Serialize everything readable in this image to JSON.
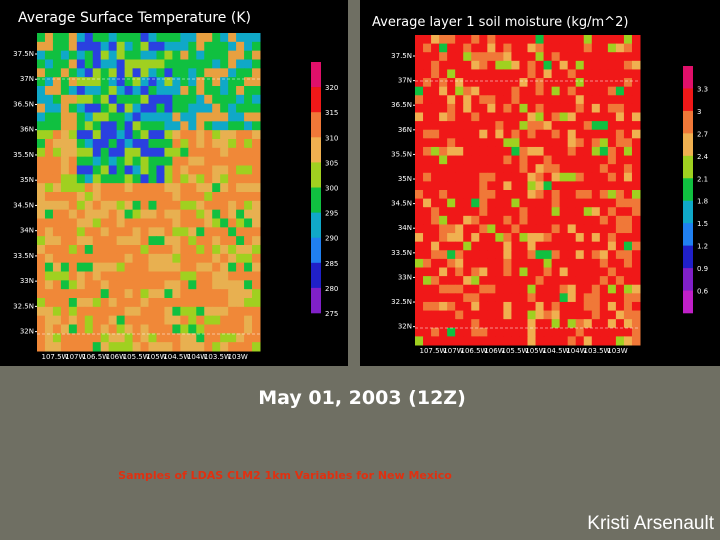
{
  "slide_title": "May 01, 2003 (12Z)",
  "subtitle": "Samples of LDAS CLM2 1km Variables for New Mexico",
  "author": "Kristi Arsenault",
  "panels": [
    {
      "title": "Average Surface Temperature (K)",
      "lat_labels": [
        "37.5N",
        "37N",
        "36.5N",
        "36N",
        "35.5N",
        "35N",
        "34.5N",
        "34N",
        "33.5N",
        "33N",
        "32.5N",
        "32N"
      ],
      "lon_labels": [
        "107.5W",
        "107W",
        "106.5W",
        "106W",
        "105.5W",
        "105W",
        "104.5W",
        "104W",
        "103.5W",
        "103W"
      ],
      "colorbar_labels": [
        "320",
        "315",
        "310",
        "305",
        "300",
        "295",
        "290",
        "285",
        "280",
        "275"
      ]
    },
    {
      "title": "Average layer 1 soil moisture (kg/m^2)",
      "lat_labels": [
        "37.5N",
        "37N",
        "36.5N",
        "36N",
        "35.5N",
        "35N",
        "34.5N",
        "34N",
        "33.5N",
        "33N",
        "32.5N",
        "32N"
      ],
      "lon_labels": [
        "107.5W",
        "107W",
        "106.5W",
        "106W",
        "105.5W",
        "105W",
        "104.5W",
        "104W",
        "103.5W",
        "103W"
      ],
      "colorbar_labels": [
        "3.3",
        "3",
        "2.7",
        "2.4",
        "2.1",
        "1.8",
        "1.5",
        "1.2",
        "0.9",
        "0.6"
      ]
    }
  ]
}
